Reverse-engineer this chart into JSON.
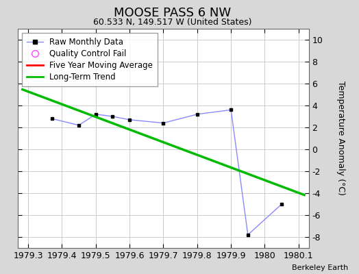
{
  "title": "MOOSE PASS 6 NW",
  "subtitle": "60.533 N, 149.517 W (United States)",
  "footer": "Berkeley Earth",
  "raw_x": [
    1979.37,
    1979.45,
    1979.5,
    1979.55,
    1979.6,
    1979.7,
    1979.8,
    1979.9,
    1979.95,
    1980.05
  ],
  "raw_y": [
    2.8,
    2.2,
    3.2,
    3.0,
    2.7,
    2.4,
    3.2,
    3.6,
    -7.8,
    -5.0
  ],
  "trend_x": [
    1979.28,
    1980.12
  ],
  "trend_y": [
    5.5,
    -4.2
  ],
  "xlim": [
    1979.27,
    1980.13
  ],
  "ylim": [
    -9,
    11
  ],
  "yticks": [
    -8,
    -6,
    -4,
    -2,
    0,
    2,
    4,
    6,
    8,
    10
  ],
  "xticks": [
    1979.3,
    1979.4,
    1979.5,
    1979.6,
    1979.7,
    1979.8,
    1979.9,
    1980.0,
    1980.1
  ],
  "raw_line_color": "#8888ff",
  "marker_color": "#000000",
  "marker_face": "#000000",
  "trend_color": "#00bb00",
  "ma_color": "#ff0000",
  "bg_color": "#d8d8d8",
  "plot_bg_color": "#ffffff",
  "grid_color": "#cccccc",
  "title_fontsize": 13,
  "subtitle_fontsize": 9,
  "tick_fontsize": 9,
  "ylabel": "Temperature Anomaly (°C)"
}
